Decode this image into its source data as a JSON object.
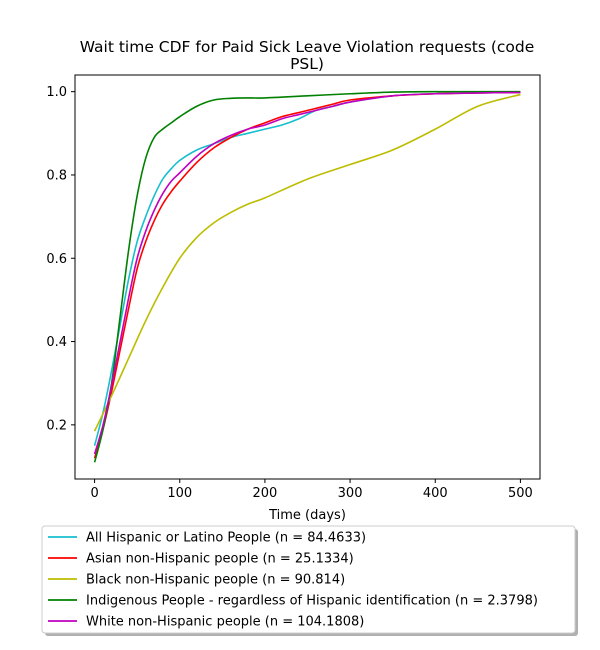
{
  "chart_data": {
    "type": "line",
    "title": "Wait time CDF for Paid Sick Leave Violation  requests (code PSL)",
    "title_lines": [
      "Wait time CDF for Paid Sick Leave Violation  requests (code",
      "PSL)"
    ],
    "xlabel": "Time (days)",
    "ylabel": "",
    "xlim": [
      -23,
      523
    ],
    "ylim": [
      0.07,
      1.04
    ],
    "xticks": [
      0,
      100,
      200,
      300,
      400,
      500
    ],
    "yticks": [
      0.2,
      0.4,
      0.6,
      0.8,
      1.0
    ],
    "ytick_labels": [
      "0.2",
      "0.4",
      "0.6",
      "0.8",
      "1.0"
    ],
    "grid": false,
    "legend_position": "below",
    "series": [
      {
        "name": "All Hispanic or Latino People (n = 84.4633)",
        "color": "#17becf",
        "x": [
          0,
          10,
          20,
          30,
          40,
          50,
          60,
          70,
          80,
          90,
          100,
          120,
          140,
          160,
          180,
          200,
          220,
          240,
          260,
          280,
          300,
          350,
          400,
          450,
          500
        ],
        "y": [
          0.15,
          0.23,
          0.33,
          0.44,
          0.55,
          0.64,
          0.7,
          0.75,
          0.79,
          0.815,
          0.835,
          0.86,
          0.875,
          0.89,
          0.9,
          0.91,
          0.92,
          0.935,
          0.955,
          0.965,
          0.975,
          0.99,
          0.995,
          0.997,
          0.998
        ]
      },
      {
        "name": "Asian non-Hispanic people (n = 25.1334)",
        "color": "#ff0000",
        "x": [
          0,
          10,
          20,
          30,
          40,
          50,
          60,
          70,
          80,
          90,
          100,
          120,
          140,
          160,
          180,
          200,
          220,
          240,
          260,
          280,
          300,
          350,
          400,
          450,
          500
        ],
        "y": [
          0.12,
          0.19,
          0.28,
          0.38,
          0.48,
          0.575,
          0.64,
          0.69,
          0.73,
          0.76,
          0.785,
          0.83,
          0.865,
          0.89,
          0.91,
          0.925,
          0.94,
          0.95,
          0.96,
          0.97,
          0.98,
          0.99,
          0.995,
          0.997,
          0.998
        ]
      },
      {
        "name": "Black non-Hispanic people (n = 90.814)",
        "color": "#bcbd00",
        "x": [
          0,
          20,
          40,
          60,
          80,
          100,
          120,
          140,
          160,
          180,
          200,
          250,
          300,
          350,
          400,
          450,
          500
        ],
        "y": [
          0.185,
          0.27,
          0.36,
          0.45,
          0.53,
          0.6,
          0.65,
          0.685,
          0.71,
          0.73,
          0.745,
          0.79,
          0.825,
          0.86,
          0.91,
          0.965,
          0.993
        ]
      },
      {
        "name": "Indigenous People - regardless of Hispanic identification (n = 2.3798)",
        "color": "#008000",
        "x": [
          0,
          10,
          20,
          30,
          40,
          50,
          60,
          70,
          80,
          90,
          100,
          120,
          140,
          160,
          180,
          200,
          250,
          300,
          350,
          400,
          450,
          500
        ],
        "y": [
          0.11,
          0.19,
          0.3,
          0.46,
          0.62,
          0.75,
          0.84,
          0.89,
          0.91,
          0.925,
          0.94,
          0.965,
          0.98,
          0.984,
          0.985,
          0.985,
          0.99,
          0.995,
          0.999,
          1.0,
          1.0,
          1.0
        ]
      },
      {
        "name": "White non-Hispanic people (n = 104.1808)",
        "color": "#bf00bf",
        "x": [
          0,
          10,
          20,
          30,
          40,
          50,
          60,
          70,
          80,
          90,
          100,
          120,
          140,
          160,
          180,
          200,
          220,
          240,
          260,
          280,
          300,
          350,
          400,
          450,
          500
        ],
        "y": [
          0.13,
          0.2,
          0.295,
          0.4,
          0.505,
          0.6,
          0.665,
          0.715,
          0.755,
          0.785,
          0.805,
          0.845,
          0.875,
          0.895,
          0.91,
          0.92,
          0.935,
          0.945,
          0.955,
          0.965,
          0.975,
          0.99,
          0.995,
          0.997,
          0.998
        ]
      }
    ]
  }
}
